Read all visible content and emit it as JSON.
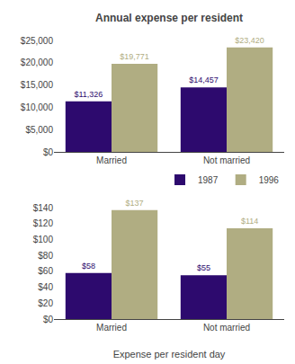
{
  "chart_data": [
    {
      "type": "bar",
      "title": "Annual expense per resident",
      "categories": [
        "Married",
        "Not married"
      ],
      "series": [
        {
          "name": "1987",
          "color": "#2d0a6e",
          "values": [
            11326,
            14457
          ],
          "value_labels": [
            "$11,326",
            "$14,457"
          ]
        },
        {
          "name": "1996",
          "color": "#b0ad82",
          "values": [
            19771,
            23420
          ],
          "value_labels": [
            "$19,771",
            "$23,420"
          ]
        }
      ],
      "ylim": [
        0,
        25000
      ],
      "yticks": [
        {
          "value": 0,
          "label": "$0"
        },
        {
          "value": 5000,
          "label": "$5,000"
        },
        {
          "value": 10000,
          "label": "$10,000"
        },
        {
          "value": 15000,
          "label": "$15,000"
        },
        {
          "value": 20000,
          "label": "$20,000"
        },
        {
          "value": 25000,
          "label": "$25,000"
        }
      ],
      "grid": false,
      "data_labels": true,
      "legend": "right"
    },
    {
      "type": "bar",
      "xlabel": "Expense per resident day",
      "categories": [
        "Married",
        "Not married"
      ],
      "series": [
        {
          "name": "1987",
          "color": "#2d0a6e",
          "values": [
            58,
            55
          ],
          "value_labels": [
            "$58",
            "$55"
          ]
        },
        {
          "name": "1996",
          "color": "#b0ad82",
          "values": [
            137,
            114
          ],
          "value_labels": [
            "$137",
            "$114"
          ]
        }
      ],
      "ylim": [
        0,
        140
      ],
      "yticks": [
        {
          "value": 0,
          "label": "$0"
        },
        {
          "value": 20,
          "label": "$20"
        },
        {
          "value": 40,
          "label": "$40"
        },
        {
          "value": 60,
          "label": "$60"
        },
        {
          "value": 80,
          "label": "$80"
        },
        {
          "value": 100,
          "label": "$100"
        },
        {
          "value": 120,
          "label": "$120"
        },
        {
          "value": 140,
          "label": "$140"
        }
      ],
      "grid": false,
      "data_labels": true
    }
  ]
}
